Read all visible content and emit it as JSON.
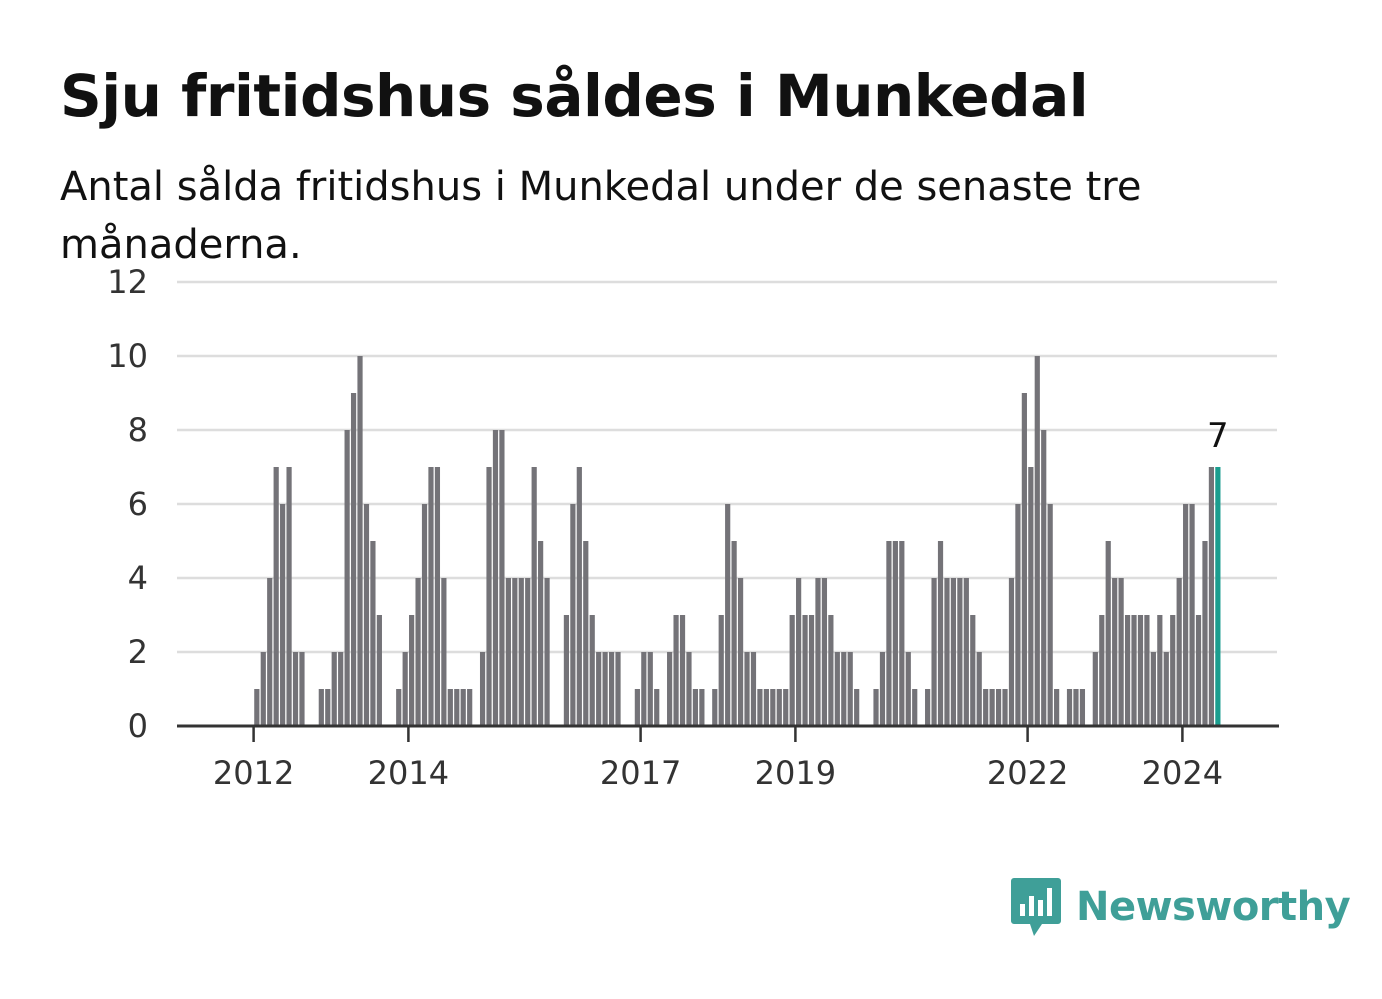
{
  "header": {
    "title": "Sju fritidshus såldes i Munkedal",
    "subtitle": "Antal sålda fritidshus i Munkedal under de senaste tre månaderna."
  },
  "brand": {
    "name": "Newsworthy",
    "icon": "newsworthy-logo-icon"
  },
  "colors": {
    "bar": "#747378",
    "highlight": "#1a9e8f",
    "grid": "#dddddd",
    "axis": "#333333",
    "brand": "#3f9f98"
  },
  "chart_data": {
    "type": "bar",
    "start": "2011-01",
    "frequency": "monthly",
    "ylim": [
      0,
      12
    ],
    "yticks": [
      0,
      2,
      4,
      6,
      8,
      10,
      12
    ],
    "xtick_labels": [
      "2012",
      "2014",
      "2017",
      "2019",
      "2022",
      "2024"
    ],
    "grid": true,
    "highlight_last": true,
    "last_value_label": "7",
    "values": [
      0,
      0,
      0,
      0,
      0,
      0,
      0,
      0,
      0,
      0,
      0,
      0,
      1,
      2,
      4,
      7,
      6,
      7,
      2,
      2,
      0,
      0,
      1,
      1,
      2,
      2,
      8,
      9,
      10,
      6,
      5,
      3,
      0,
      0,
      1,
      2,
      3,
      4,
      6,
      7,
      7,
      4,
      1,
      1,
      1,
      1,
      0,
      2,
      7,
      8,
      8,
      4,
      4,
      4,
      4,
      7,
      5,
      4,
      0,
      0,
      3,
      6,
      7,
      5,
      3,
      2,
      2,
      2,
      2,
      0,
      0,
      1,
      2,
      2,
      1,
      0,
      2,
      3,
      3,
      2,
      1,
      1,
      0,
      1,
      3,
      6,
      5,
      4,
      2,
      2,
      1,
      1,
      1,
      1,
      1,
      3,
      4,
      3,
      3,
      4,
      4,
      3,
      2,
      2,
      2,
      1,
      0,
      0,
      1,
      2,
      5,
      5,
      5,
      2,
      1,
      0,
      1,
      4,
      5,
      4,
      4,
      4,
      4,
      3,
      2,
      1,
      1,
      1,
      1,
      4,
      6,
      9,
      7,
      10,
      8,
      6,
      1,
      0,
      1,
      1,
      1,
      0,
      2,
      3,
      5,
      4,
      4,
      3,
      3,
      3,
      3,
      2,
      3,
      2,
      3,
      4,
      6,
      6,
      3,
      5,
      7,
      7
    ]
  }
}
